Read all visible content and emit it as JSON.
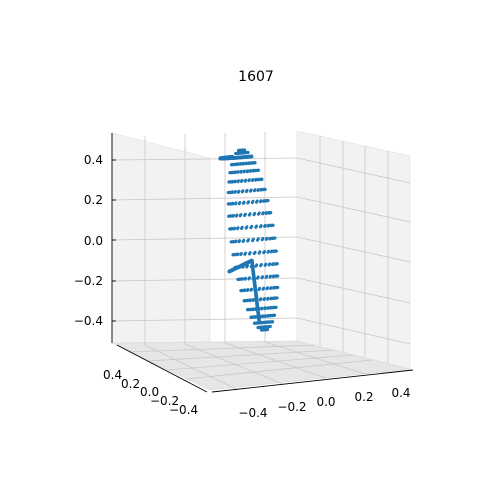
{
  "chart_data": {
    "type": "scatter",
    "title": "1607",
    "projection": "3d",
    "xlabel": "",
    "ylabel": "",
    "zlabel": "",
    "xlim": [
      -0.5,
      0.5
    ],
    "ylim": [
      -0.5,
      0.5
    ],
    "zlim": [
      -0.5,
      0.5
    ],
    "x_ticks": [
      "−0.4",
      "−0.2",
      "0.0",
      "0.2",
      "0.4"
    ],
    "y_ticks": [
      "0.4",
      "0.2",
      "0.0",
      "−0.2",
      "−0.4"
    ],
    "z_ticks": [
      "0.4",
      "0.2",
      "0.0",
      "−0.2",
      "−0.4"
    ],
    "grid": true,
    "point_color": "#1f77b4",
    "series": [
      {
        "shape": "ellipsoid point cloud",
        "center": [
          0.0,
          0.0,
          0.0
        ],
        "semi_axes": [
          0.05,
          0.2,
          0.45
        ],
        "tilt_deg": 8
      }
    ]
  }
}
